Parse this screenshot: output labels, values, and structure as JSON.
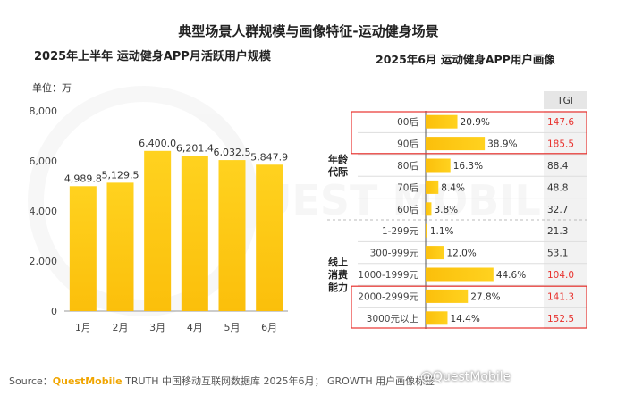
{
  "title": "典型场景人群规模与画像特征-运动健身场景",
  "source": {
    "prefix": "Source：",
    "brand": "QuestMobile",
    "text": " TRUTH 中国移动互联网数据库 2025年6月；  GROWTH 用户画像标签"
  },
  "credit": "@QuestMobile",
  "watermark": "QUEST MOBILE",
  "chart_data": [
    {
      "type": "bar",
      "title": "2025年上半年 运动健身APP月活跃用户规模",
      "unit_label": "单位：万",
      "categories": [
        "1月",
        "2月",
        "3月",
        "4月",
        "5月",
        "6月"
      ],
      "values": [
        4989.8,
        5129.5,
        6400.0,
        6201.4,
        6032.5,
        5847.9
      ],
      "value_labels": [
        "4,989.8",
        "5,129.5",
        "6,400.0",
        "6,201.4",
        "6,032.5",
        "5,847.9"
      ],
      "ylim": [
        0,
        8000
      ],
      "yticks": [
        0,
        2000,
        4000,
        6000,
        8000
      ],
      "ytick_labels": [
        "0",
        "2,000",
        "4,000",
        "6,000",
        "8,000"
      ],
      "bar_color": "#fbbf0b",
      "grid": false
    },
    {
      "type": "bar",
      "orientation": "horizontal",
      "title": "2025年6月 运动健身APP用户画像",
      "tgi_header": "TGI",
      "groups": [
        {
          "name": "年龄代际",
          "lines": [
            "年龄",
            "代际"
          ],
          "rows": [
            "00后",
            "90后",
            "80后",
            "70后",
            "60后"
          ]
        },
        {
          "name": "线上消费能力",
          "lines": [
            "线上",
            "消费",
            "能力"
          ],
          "rows": [
            "1-299元",
            "300-999元",
            "1000-1999元",
            "2000-2999元",
            "3000元以上"
          ]
        }
      ],
      "categories": [
        "00后",
        "90后",
        "80后",
        "70后",
        "60后",
        "1-299元",
        "300-999元",
        "1000-1999元",
        "2000-2999元",
        "3000元以上"
      ],
      "values": [
        20.9,
        38.9,
        16.3,
        8.4,
        3.8,
        1.1,
        12.0,
        44.6,
        27.8,
        14.4
      ],
      "value_labels": [
        "20.9%",
        "38.9%",
        "16.3%",
        "8.4%",
        "3.8%",
        "1.1%",
        "12.0%",
        "44.6%",
        "27.8%",
        "14.4%"
      ],
      "tgi": [
        "147.6",
        "185.5",
        "88.4",
        "48.8",
        "32.7",
        "21.3",
        "53.1",
        "104.0",
        "141.3",
        "152.5"
      ],
      "tgi_highlight": [
        true,
        true,
        false,
        false,
        false,
        false,
        false,
        true,
        true,
        true
      ],
      "highlighted_rows": [
        "00后",
        "90后",
        "2000-2999元",
        "3000元以上"
      ],
      "bar_color": "#fbbf0b",
      "highlight_color": "#e8322e"
    }
  ]
}
